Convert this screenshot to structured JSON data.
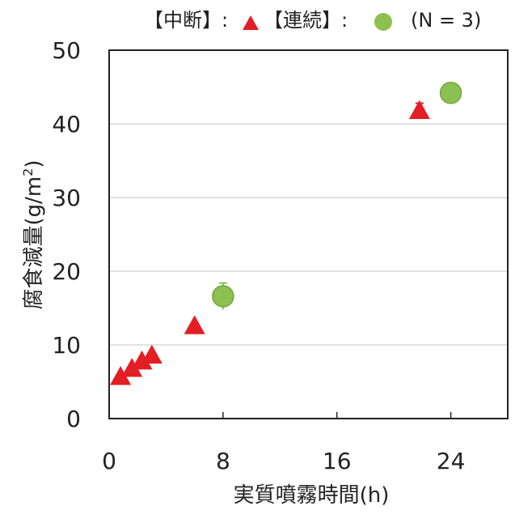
{
  "chart_data": {
    "type": "scatter",
    "xlabel": "実質噴霧時間(h)",
    "ylabel_main": "腐食減量(",
    "ylabel_unit_base": "g/m",
    "ylabel_unit_sup": "2",
    "ylabel_close": ")",
    "xlim": [
      0,
      28
    ],
    "ylim": [
      0,
      50
    ],
    "xticks": [
      0,
      8,
      16,
      24
    ],
    "yticks": [
      0,
      10,
      20,
      30,
      40,
      50
    ],
    "grid": "horizontal",
    "legend_position": "top",
    "series": [
      {
        "name": "【中断】:",
        "marker": "triangle",
        "color": "#e31e24",
        "points": [
          {
            "x": 0.8,
            "y": 5.7
          },
          {
            "x": 1.6,
            "y": 6.8
          },
          {
            "x": 2.3,
            "y": 7.8
          },
          {
            "x": 3.0,
            "y": 8.6
          },
          {
            "x": 6.0,
            "y": 12.6
          },
          {
            "x": 21.8,
            "y": 41.8,
            "err": 1.0
          }
        ]
      },
      {
        "name": "【連続】:",
        "marker": "circle",
        "color": "#8cc152",
        "points": [
          {
            "x": 8.0,
            "y": 16.6,
            "err": 1.8
          },
          {
            "x": 24.0,
            "y": 44.2
          }
        ]
      }
    ],
    "note": "(N = 3)"
  }
}
